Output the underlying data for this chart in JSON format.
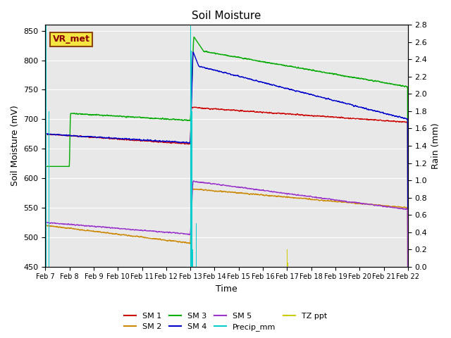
{
  "title": "Soil Moisture",
  "xlabel": "Time",
  "ylabel_left": "Soil Moisture (mV)",
  "ylabel_right": "Rain (mm)",
  "ylim_left": [
    450,
    860
  ],
  "ylim_right": [
    0.0,
    2.8
  ],
  "date_labels": [
    "Feb 7",
    "Feb 8",
    "Feb 9",
    "Feb 10",
    "Feb 11",
    "Feb 12",
    "Feb 13",
    "Feb 14",
    "Feb 15",
    "Feb 16",
    "Feb 17",
    "Feb 18",
    "Feb 19",
    "Feb 20",
    "Feb 21",
    "Feb 22"
  ],
  "bg_color": "#e8e8e8",
  "annotation_label": "VR_met",
  "series_colors": {
    "SM1": "#cc0000",
    "SM2": "#cc8800",
    "SM3": "#00aa00",
    "SM4": "#0000cc",
    "SM5": "#9933cc",
    "Precip_mm": "#00cccc",
    "TZ_ppt": "#cccc00"
  },
  "legend_labels": [
    "SM 1",
    "SM 2",
    "SM 3",
    "SM 4",
    "SM 5",
    "Precip_mm",
    "TZ ppt"
  ]
}
